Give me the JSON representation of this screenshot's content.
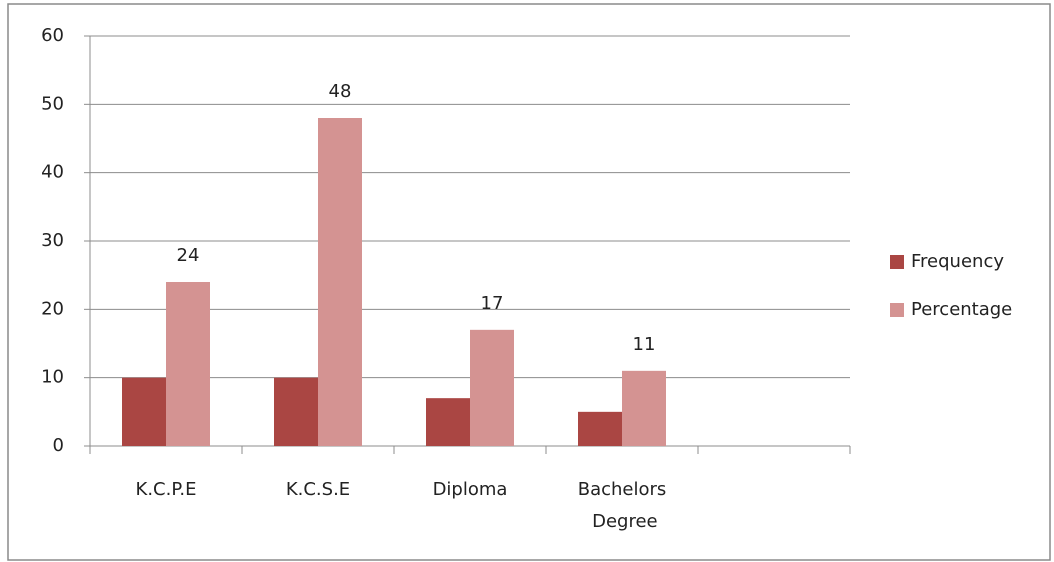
{
  "chart_data": {
    "type": "bar",
    "categories": [
      "K.C.P.E",
      "K.C.S.E",
      "Diploma",
      "Bachelors Degree",
      null
    ],
    "series": [
      {
        "name": "Frequency",
        "color": "#aa4643",
        "values": [
          10,
          10,
          7,
          5,
          null
        ],
        "data_labels": false
      },
      {
        "name": "Percentage",
        "color": "#d49392",
        "values": [
          24,
          48,
          17,
          11,
          null
        ],
        "data_labels": true
      }
    ],
    "ylim": [
      0,
      60
    ],
    "yticks": [
      0,
      10,
      20,
      30,
      40,
      50,
      60
    ],
    "grid": true,
    "legend": "right"
  }
}
